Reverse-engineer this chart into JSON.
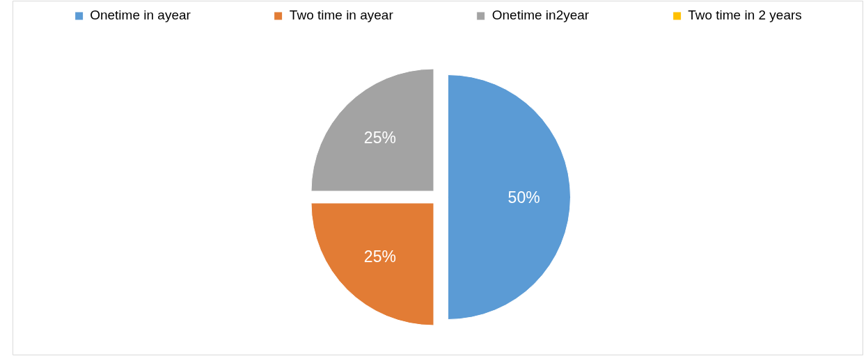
{
  "chart_data": {
    "type": "pie",
    "categories": [
      "Onetime in ayear",
      "Two time in ayear",
      "Onetime in2year",
      "Two time in 2 years"
    ],
    "values": [
      50,
      25,
      25,
      0
    ],
    "colors": [
      "#5b9bd5",
      "#e27c35",
      "#a3a3a3",
      "#ffc000"
    ],
    "value_labels": [
      "50%",
      "25%",
      "25%",
      null
    ],
    "legend": "top"
  }
}
